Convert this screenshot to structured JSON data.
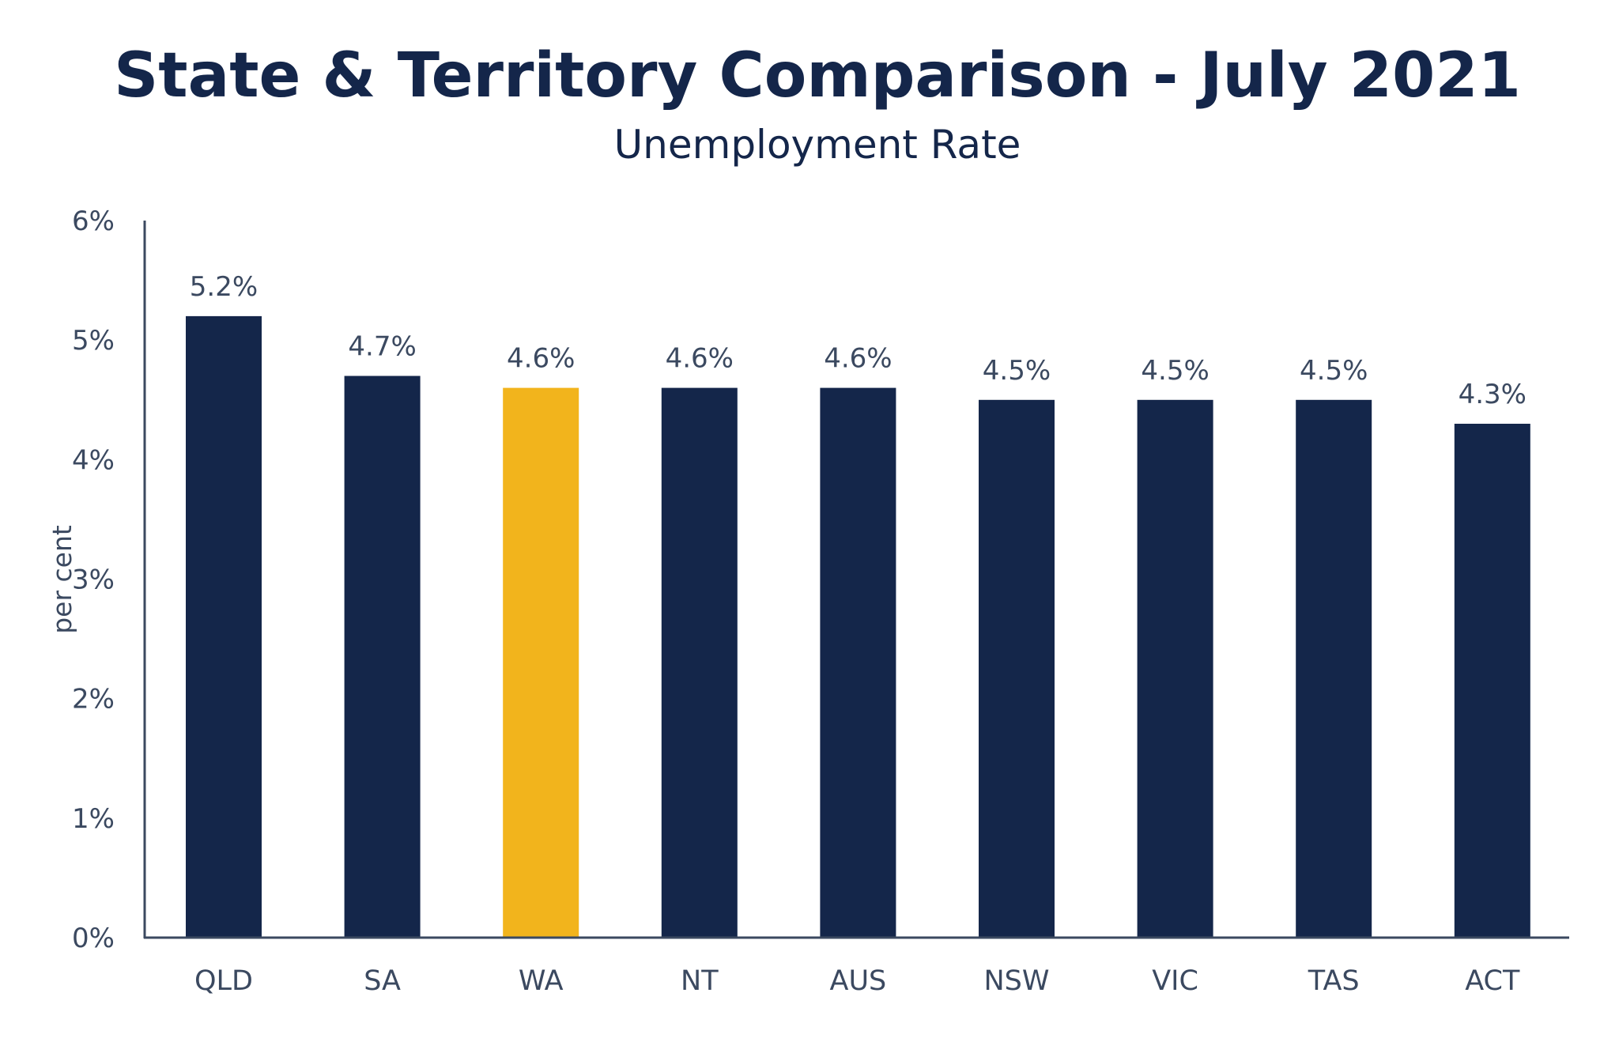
{
  "chart_data": {
    "type": "bar",
    "title": "State & Territory Comparison - July 2021",
    "subtitle": "Unemployment Rate",
    "xlabel": "",
    "ylabel": "per cent",
    "categories": [
      "QLD",
      "SA",
      "WA",
      "NT",
      "AUS",
      "NSW",
      "VIC",
      "TAS",
      "ACT"
    ],
    "values": [
      5.2,
      4.7,
      4.6,
      4.6,
      4.6,
      4.5,
      4.5,
      4.5,
      4.3
    ],
    "value_labels": [
      "5.2%",
      "4.7%",
      "4.6%",
      "4.6%",
      "4.6%",
      "4.5%",
      "4.5%",
      "4.5%",
      "4.3%"
    ],
    "ylim": [
      0,
      6
    ],
    "yticks": [
      0,
      1,
      2,
      3,
      4,
      5,
      6
    ],
    "ytick_labels": [
      "0%",
      "1%",
      "2%",
      "3%",
      "4%",
      "5%",
      "6%"
    ],
    "highlight_category": "WA",
    "colors": {
      "bar": "#14264a",
      "highlight": "#f2b41c",
      "axis": "#3b4960",
      "text": "#3b4960",
      "title": "#14264a"
    },
    "grid": false,
    "legend": "none"
  }
}
